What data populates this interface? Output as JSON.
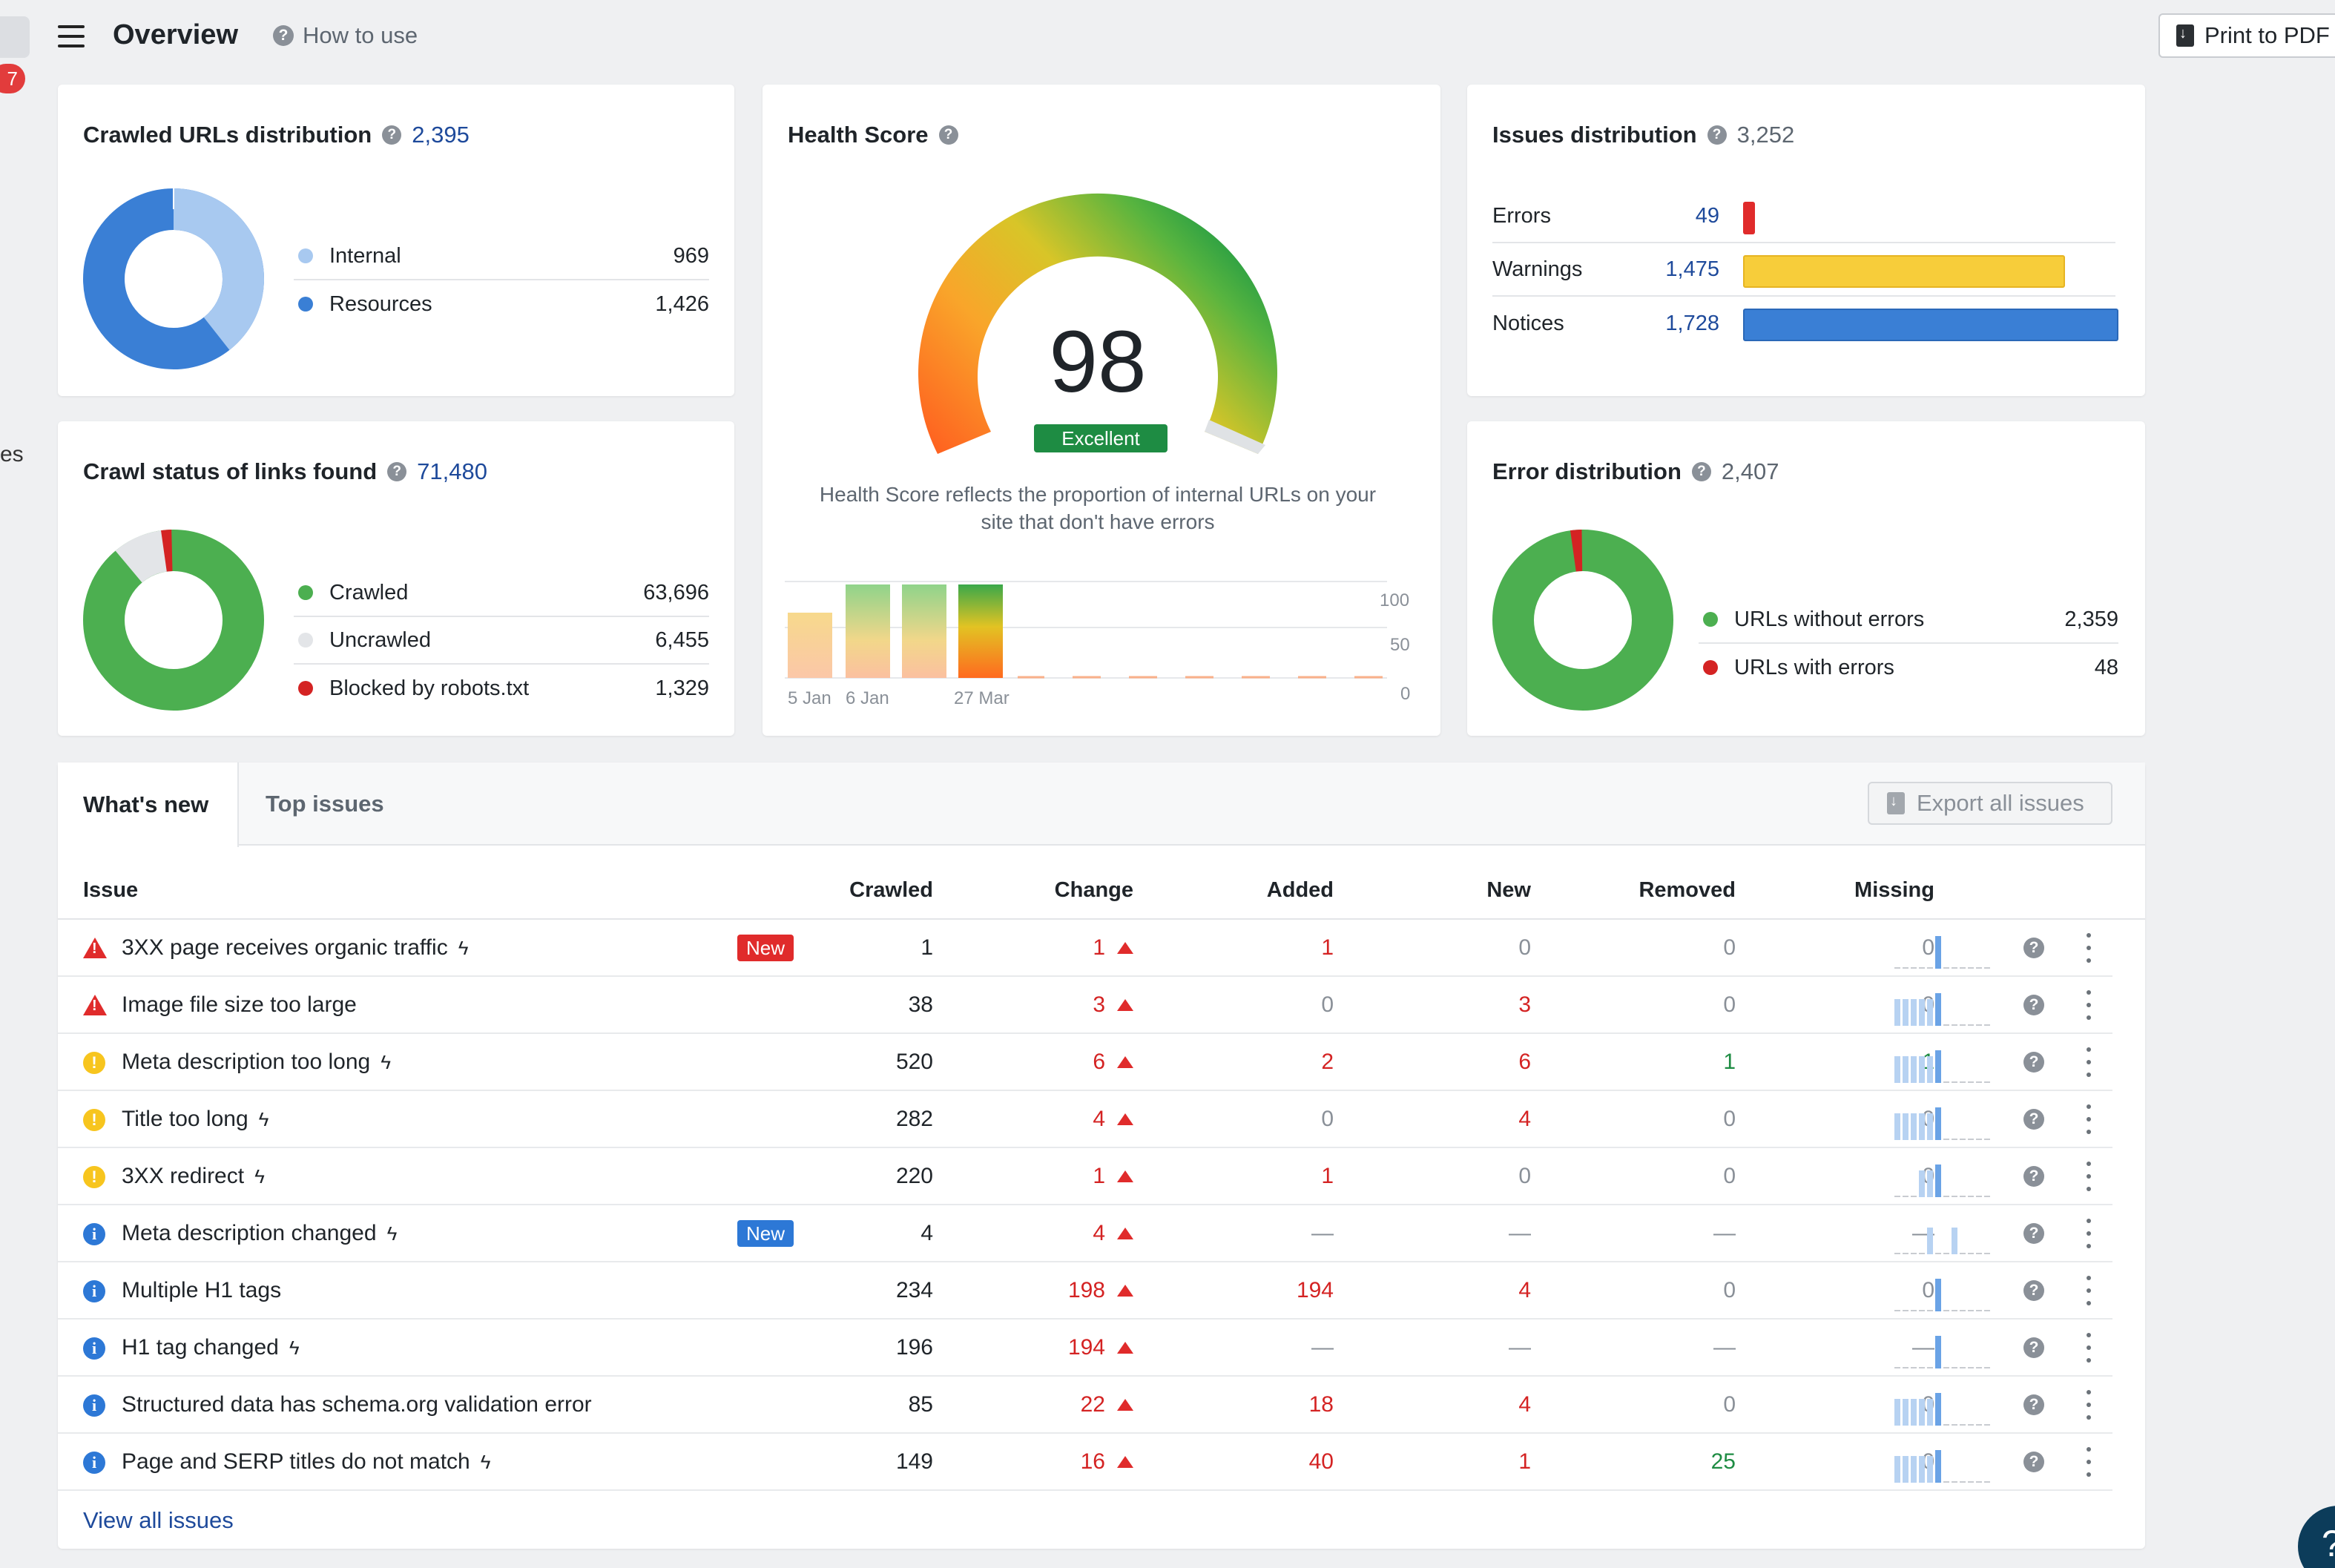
{
  "header": {
    "title": "Overview",
    "how_to_use": "How to use",
    "print_label": "Print to PDF",
    "left_badge": "7",
    "left_stub_text": "es"
  },
  "crawled_urls": {
    "title": "Crawled URLs distribution",
    "total": "2,395",
    "items": [
      {
        "label": "Internal",
        "value": "969",
        "color": "#a8c9f0"
      },
      {
        "label": "Resources",
        "value": "1,426",
        "color": "#3a7fd5"
      }
    ]
  },
  "crawl_status": {
    "title": "Crawl status of links found",
    "total": "71,480",
    "items": [
      {
        "label": "Crawled",
        "value": "63,696",
        "color": "#4caf50"
      },
      {
        "label": "Uncrawled",
        "value": "6,455",
        "color": "#e3e5e8"
      },
      {
        "label": "Blocked by robots.txt",
        "value": "1,329",
        "color": "#d42323"
      }
    ]
  },
  "health": {
    "title": "Health Score",
    "score": "98",
    "rating": "Excellent",
    "description_line1": "Health Score reflects the proportion of internal URLs on your",
    "description_line2": "site that don't have errors",
    "x_labels": [
      "5 Jan",
      "6 Jan",
      "27 Mar"
    ],
    "y_labels": [
      "100",
      "50",
      "0"
    ]
  },
  "issues_dist": {
    "title": "Issues distribution",
    "total": "3,252",
    "rows": [
      {
        "label": "Errors",
        "value": "49",
        "color": "#e02b2b"
      },
      {
        "label": "Warnings",
        "value": "1,475",
        "color": "#f7cd3a"
      },
      {
        "label": "Notices",
        "value": "1,728",
        "color": "#3a7fd5"
      }
    ]
  },
  "error_dist": {
    "title": "Error distribution",
    "total": "2,407",
    "items": [
      {
        "label": "URLs without errors",
        "value": "2,359",
        "color": "#4caf50"
      },
      {
        "label": "URLs with errors",
        "value": "48",
        "color": "#d42323"
      }
    ]
  },
  "table": {
    "tab_active": "What's new",
    "tab_inactive": "Top issues",
    "export_label": "Export all issues",
    "columns": [
      "Issue",
      "Crawled",
      "Change",
      "Added",
      "New",
      "Removed",
      "Missing"
    ],
    "new_tag": "New",
    "rows": [
      {
        "severity": "error",
        "name": "3XX page receives organic traffic",
        "bolt": true,
        "tag": "New",
        "tag_color": "#e02b2b",
        "crawled": "1",
        "change": "1",
        "added": "1",
        "new": "0",
        "removed": "0",
        "missing": "0"
      },
      {
        "severity": "error",
        "name": "Image file size too large",
        "bolt": false,
        "tag": "",
        "crawled": "38",
        "change": "3",
        "added": "0",
        "new": "3",
        "removed": "0",
        "missing": "0"
      },
      {
        "severity": "warning",
        "name": "Meta description too long",
        "bolt": true,
        "tag": "",
        "crawled": "520",
        "change": "6",
        "added": "2",
        "new": "6",
        "removed": "1",
        "missing": "1"
      },
      {
        "severity": "warning",
        "name": "Title too long",
        "bolt": true,
        "tag": "",
        "crawled": "282",
        "change": "4",
        "added": "0",
        "new": "4",
        "removed": "0",
        "missing": "0"
      },
      {
        "severity": "warning",
        "name": "3XX redirect",
        "bolt": true,
        "tag": "",
        "crawled": "220",
        "change": "1",
        "added": "1",
        "new": "0",
        "removed": "0",
        "missing": "0"
      },
      {
        "severity": "info",
        "name": "Meta description changed",
        "bolt": true,
        "tag": "New",
        "tag_color": "#2d78d6",
        "crawled": "4",
        "change": "4",
        "added": "—",
        "new": "—",
        "removed": "—",
        "missing": "—"
      },
      {
        "severity": "info",
        "name": "Multiple H1 tags",
        "bolt": false,
        "tag": "",
        "crawled": "234",
        "change": "198",
        "added": "194",
        "new": "4",
        "removed": "0",
        "missing": "0"
      },
      {
        "severity": "info",
        "name": "H1 tag changed",
        "bolt": true,
        "tag": "",
        "crawled": "196",
        "change": "194",
        "added": "—",
        "new": "—",
        "removed": "—",
        "missing": "—"
      },
      {
        "severity": "info",
        "name": "Structured data has schema.org validation error",
        "bolt": false,
        "tag": "",
        "crawled": "85",
        "change": "22",
        "added": "18",
        "new": "4",
        "removed": "0",
        "missing": "0"
      },
      {
        "severity": "info",
        "name": "Page and SERP titles do not match",
        "bolt": true,
        "tag": "",
        "crawled": "149",
        "change": "16",
        "added": "40",
        "new": "1",
        "removed": "25",
        "missing": "0"
      }
    ],
    "view_all": "View all issues"
  },
  "help_fab": "?"
}
